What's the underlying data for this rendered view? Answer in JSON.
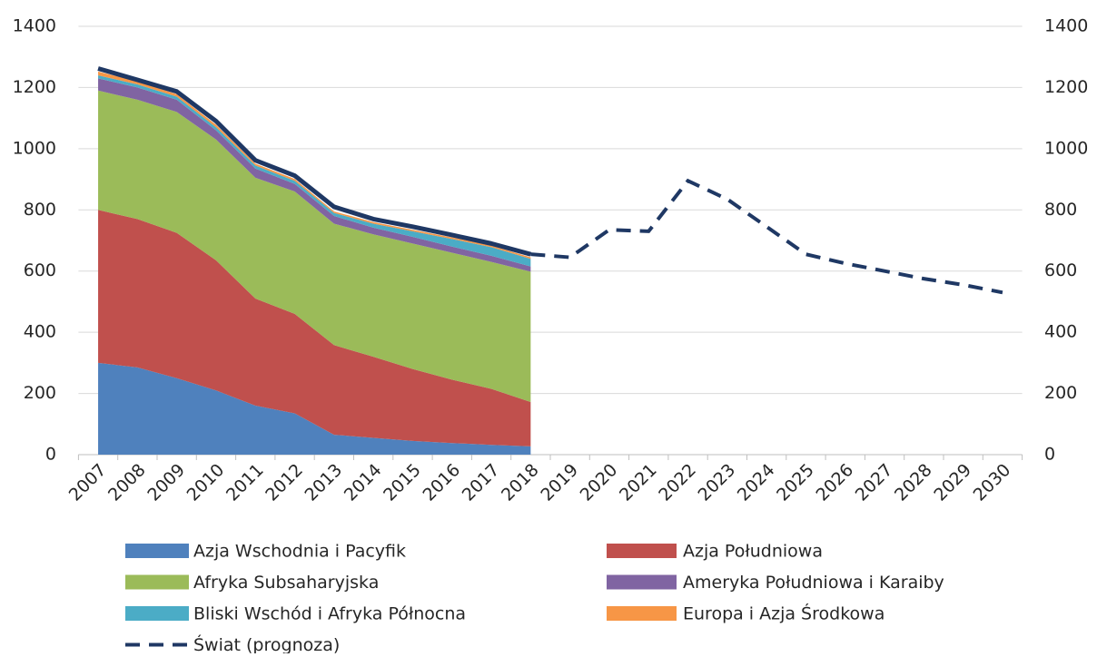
{
  "chart_data": {
    "type": "stacked_area",
    "categories": [
      "2007",
      "2008",
      "2009",
      "2010",
      "2011",
      "2012",
      "2013",
      "2014",
      "2015",
      "2016",
      "2017",
      "2018",
      "2019",
      "2020",
      "2021",
      "2022",
      "2023",
      "2024",
      "2025",
      "2026",
      "2027",
      "2028",
      "2029",
      "2030"
    ],
    "series": [
      {
        "name": "Azja Wschodnia i Pacyfik",
        "color": "#4f81bd",
        "values": [
          300,
          285,
          250,
          210,
          160,
          135,
          65,
          55,
          45,
          38,
          32,
          27,
          null,
          null,
          null,
          null,
          null,
          null,
          null,
          null,
          null,
          null,
          null,
          null
        ]
      },
      {
        "name": "Azja Południowa",
        "color": "#c0504d",
        "values": [
          500,
          485,
          475,
          425,
          350,
          325,
          293,
          265,
          235,
          207,
          183,
          145,
          null,
          null,
          null,
          null,
          null,
          null,
          null,
          null,
          null,
          null,
          null,
          null
        ]
      },
      {
        "name": "Afryka Subsaharyjska",
        "color": "#9bbb59",
        "values": [
          390,
          390,
          395,
          395,
          395,
          400,
          397,
          400,
          410,
          415,
          415,
          426,
          null,
          null,
          null,
          null,
          null,
          null,
          null,
          null,
          null,
          null,
          null,
          null
        ]
      },
      {
        "name": "Ameryka Południowa i Karaiby",
        "color": "#8064a2",
        "values": [
          40,
          40,
          40,
          30,
          30,
          25,
          25,
          22,
          22,
          20,
          20,
          17,
          null,
          null,
          null,
          null,
          null,
          null,
          null,
          null,
          null,
          null,
          null,
          null
        ]
      },
      {
        "name": "Bliski Wschód i Afryka Północna",
        "color": "#4bacc6",
        "values": [
          10,
          10,
          10,
          10,
          10,
          10,
          10,
          13,
          18,
          25,
          28,
          25,
          null,
          null,
          null,
          null,
          null,
          null,
          null,
          null,
          null,
          null,
          null,
          null
        ]
      },
      {
        "name": "Europa i Azja Środkowa",
        "color": "#f79646",
        "values": [
          12,
          10,
          8,
          8,
          6,
          6,
          5,
          5,
          5,
          5,
          5,
          5,
          null,
          null,
          null,
          null,
          null,
          null,
          null,
          null,
          null,
          null,
          null,
          null
        ]
      },
      {
        "name": "Świat (prognoza)",
        "color": "#1f3864",
        "line": "dashed",
        "values": [
          1262,
          1225,
          1187,
          1090,
          962,
          912,
          810,
          770,
          745,
          718,
          690,
          655,
          645,
          735,
          730,
          895,
          835,
          745,
          655,
          625,
          600,
          575,
          555,
          530
        ]
      }
    ],
    "ylim": [
      0,
      1400
    ],
    "yticks": [
      0,
      200,
      400,
      600,
      800,
      1000,
      1200,
      1400
    ],
    "y2lim": [
      0,
      1400
    ],
    "y2ticks": [
      0,
      200,
      400,
      600,
      800,
      1000,
      1200,
      1400
    ],
    "grid": true,
    "legend": "bottom"
  }
}
